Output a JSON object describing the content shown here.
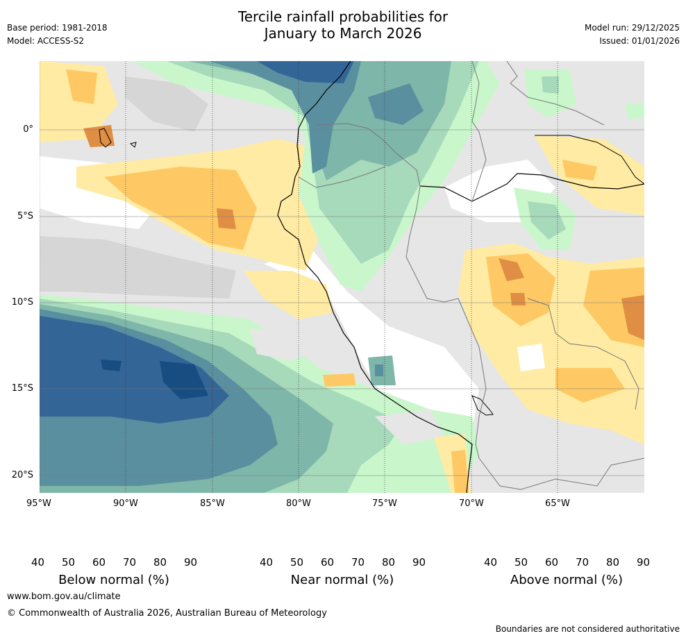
{
  "header": {
    "title_line1": "Tercile rainfall probabilities for",
    "title_line2": "January to March 2026",
    "base_period": "Base period: 1981-2018",
    "model": "Model: ACCESS-S2",
    "model_run": "Model run: 29/12/2025",
    "issued": "Issued: 01/01/2026"
  },
  "map": {
    "lon_ticks": [
      "95°W",
      "90°W",
      "85°W",
      "80°W",
      "75°W",
      "70°W",
      "65°W"
    ],
    "lat_ticks": [
      "0°",
      "5°S",
      "10°S",
      "15°S",
      "20°S"
    ]
  },
  "colorbars": [
    {
      "label": "Below normal (%)",
      "ticks": [
        "40",
        "50",
        "60",
        "70",
        "80",
        "90"
      ],
      "colors": [
        "#ffeba3",
        "#fec964",
        "#df8e43",
        "#c9622f",
        "#ad4b27",
        "#8b2b1d"
      ]
    },
    {
      "label": "Near normal (%)",
      "ticks": [
        "40",
        "50",
        "60",
        "70",
        "80",
        "90"
      ],
      "colors": [
        "#e6e6e6",
        "#d6d6d6",
        "#c6c6c6",
        "#b4b4b4",
        "#a0a0a0",
        "#868686"
      ]
    },
    {
      "label": "Above normal (%)",
      "ticks": [
        "40",
        "50",
        "60",
        "70",
        "80",
        "90"
      ],
      "colors": [
        "#c9f7cb",
        "#a7d9bb",
        "#7eb6a9",
        "#5a8f9f",
        "#336597",
        "#174d80"
      ]
    }
  ],
  "footer": {
    "url": "www.bom.gov.au/climate",
    "copyright": "© Commonwealth of Australia 2026, Australian Bureau of Meteorology",
    "disclaimer": "Boundaries are not considered authoritative"
  }
}
